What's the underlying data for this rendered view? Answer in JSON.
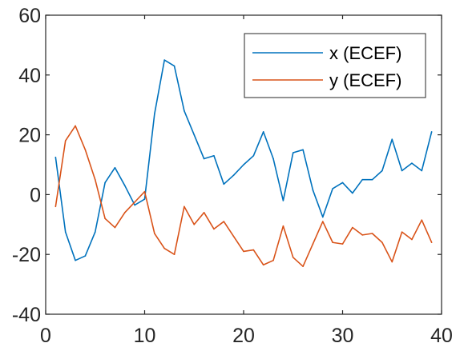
{
  "chart_data": {
    "type": "line",
    "title": "",
    "xlabel": "",
    "ylabel": "",
    "xlim": [
      0,
      40
    ],
    "ylim": [
      -40,
      60
    ],
    "xticks": [
      0,
      10,
      20,
      30,
      40
    ],
    "yticks": [
      -40,
      -20,
      0,
      20,
      40,
      60
    ],
    "xtick_labels": [
      "0",
      "10",
      "20",
      "30",
      "40"
    ],
    "ytick_labels": [
      "-40",
      "-20",
      "0",
      "20",
      "40",
      "60"
    ],
    "grid": false,
    "legend_position": "top-right",
    "x": [
      1,
      2,
      3,
      4,
      5,
      6,
      7,
      8,
      9,
      10,
      11,
      12,
      13,
      14,
      15,
      16,
      17,
      18,
      19,
      20,
      21,
      22,
      23,
      24,
      25,
      26,
      27,
      28,
      29,
      30,
      31,
      32,
      33,
      34,
      35,
      36,
      37,
      38,
      39
    ],
    "series": [
      {
        "name": "x (ECEF)",
        "color": "#0072BD",
        "values": [
          12.5,
          -12.5,
          -22,
          -20.5,
          -12.5,
          4,
          9,
          3,
          -3.5,
          -1.5,
          27,
          45,
          43,
          28,
          20,
          12,
          13,
          3.5,
          6.5,
          10,
          13,
          21,
          12,
          -2,
          14,
          15,
          1.5,
          -7.5,
          2,
          4,
          0.5,
          5,
          5,
          8,
          18.5,
          8,
          10.5,
          8,
          21
        ]
      },
      {
        "name": "y (ECEF)",
        "color": "#D95319",
        "values": [
          -4,
          18,
          23,
          15,
          5,
          -8,
          -11,
          -6,
          -2.5,
          1,
          -13,
          -18,
          -20,
          -4,
          -10,
          -6,
          -11.5,
          -9,
          -14,
          -19,
          -18.5,
          -23.5,
          -22,
          -10.5,
          -21,
          -24,
          -16.5,
          -9,
          -16,
          -16.5,
          -11,
          -13.5,
          -13,
          -16,
          -22.5,
          -12.5,
          -15,
          -8.5,
          -16
        ]
      }
    ]
  }
}
